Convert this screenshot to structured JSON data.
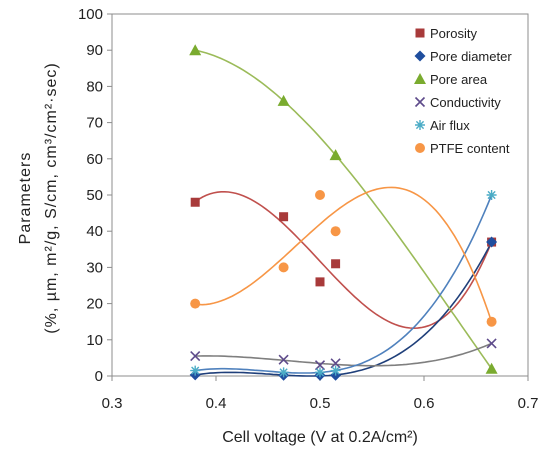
{
  "chart_data": {
    "type": "scatter",
    "title": "",
    "xlabel": "Cell voltage (V at 0.2A/cm²)",
    "ylabel": "Parameters",
    "ylabel_units": "(%, µm, m²/g, S/cm, cm³/cm²·sec)",
    "xlim": [
      0.3,
      0.7
    ],
    "ylim": [
      0,
      100
    ],
    "x_ticks": [
      0.3,
      0.4,
      0.5,
      0.6,
      0.7
    ],
    "y_ticks": [
      0,
      10,
      20,
      30,
      40,
      50,
      60,
      70,
      80,
      90,
      100
    ],
    "x_tick_labels": [
      "0.3",
      "0.4",
      "0.5",
      "0.6",
      "0.7"
    ],
    "y_tick_labels": [
      "0",
      "10",
      "20",
      "30",
      "40",
      "50",
      "60",
      "70",
      "80",
      "90",
      "100"
    ],
    "grid": false,
    "legend_position": "top-right",
    "trendlines": "polynomial",
    "series": [
      {
        "name": "Porosity",
        "marker": "square",
        "color": "#a83a3a",
        "line_color": "#c0504d",
        "x": [
          0.38,
          0.465,
          0.5,
          0.515,
          0.665
        ],
        "y": [
          48,
          44,
          26,
          31,
          37
        ]
      },
      {
        "name": "Pore diameter",
        "marker": "diamond",
        "color": "#1f4e9e",
        "line_color": "#1f3f7a",
        "x": [
          0.38,
          0.465,
          0.5,
          0.515,
          0.665
        ],
        "y": [
          0.3,
          0.2,
          0.2,
          0.2,
          37
        ]
      },
      {
        "name": "Pore area",
        "marker": "triangle",
        "color": "#7aab2f",
        "line_color": "#9bbb59",
        "x": [
          0.38,
          0.465,
          0.515,
          0.665
        ],
        "y": [
          90,
          76,
          61,
          2
        ]
      },
      {
        "name": "Conductivity",
        "marker": "x",
        "color": "#5e4b8b",
        "line_color": "#7f7f7f",
        "x": [
          0.38,
          0.465,
          0.5,
          0.515,
          0.665
        ],
        "y": [
          5.5,
          4.5,
          3,
          3.5,
          9
        ]
      },
      {
        "name": "Air flux",
        "marker": "star",
        "color": "#4bacc6",
        "line_color": "#4f81bd",
        "x": [
          0.38,
          0.465,
          0.5,
          0.515,
          0.665
        ],
        "y": [
          1.5,
          1,
          1,
          1.5,
          50
        ]
      },
      {
        "name": "PTFE content",
        "marker": "circle",
        "color": "#f79646",
        "line_color": "#f79646",
        "x": [
          0.38,
          0.465,
          0.5,
          0.515,
          0.665
        ],
        "y": [
          20,
          30,
          50,
          40,
          15
        ]
      }
    ]
  }
}
